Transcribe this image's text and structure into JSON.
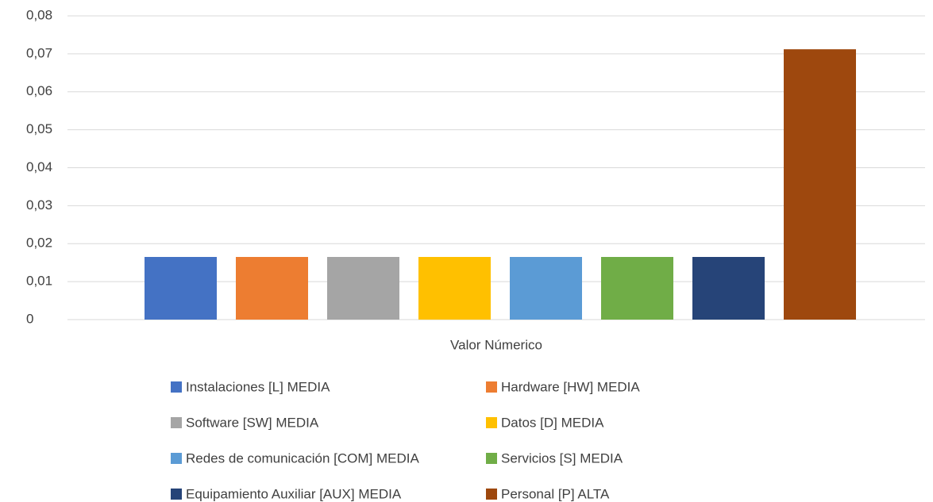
{
  "chart_data": {
    "type": "bar",
    "categories": [
      "Valor Númerico"
    ],
    "series": [
      {
        "name": "Instalaciones [L] MEDIA",
        "color": "#4472c4",
        "values": [
          0.0165
        ]
      },
      {
        "name": "Hardware [HW] MEDIA",
        "color": "#ed7d31",
        "values": [
          0.0165
        ]
      },
      {
        "name": "Software [SW] MEDIA",
        "color": "#a5a5a5",
        "values": [
          0.0165
        ]
      },
      {
        "name": "Datos [D] MEDIA",
        "color": "#ffc000",
        "values": [
          0.0165
        ]
      },
      {
        "name": "Redes de comunicación [COM] MEDIA",
        "color": "#5b9bd5",
        "values": [
          0.0165
        ]
      },
      {
        "name": "Servicios [S] MEDIA",
        "color": "#70ad47",
        "values": [
          0.0165
        ]
      },
      {
        "name": "Equipamiento Auxiliar [AUX] MEDIA",
        "color": "#264478",
        "values": [
          0.0165
        ]
      },
      {
        "name": "Personal [P] ALTA",
        "color": "#9e480e",
        "values": [
          0.0712
        ]
      }
    ],
    "ylim": [
      0,
      0.08
    ],
    "yticks": [
      0,
      {
        "value": 0.01,
        "label": "0,01"
      },
      {
        "value": 0.02,
        "label": "0,02"
      },
      {
        "value": 0.03,
        "label": "0,03"
      },
      {
        "value": 0.04,
        "label": "0,04"
      },
      {
        "value": 0.05,
        "label": "0,05"
      },
      {
        "value": 0.06,
        "label": "0,06"
      },
      {
        "value": 0.07,
        "label": "0,07"
      },
      {
        "value": 0.08,
        "label": "0,08"
      }
    ],
    "grid": true,
    "legend": "bottom"
  }
}
